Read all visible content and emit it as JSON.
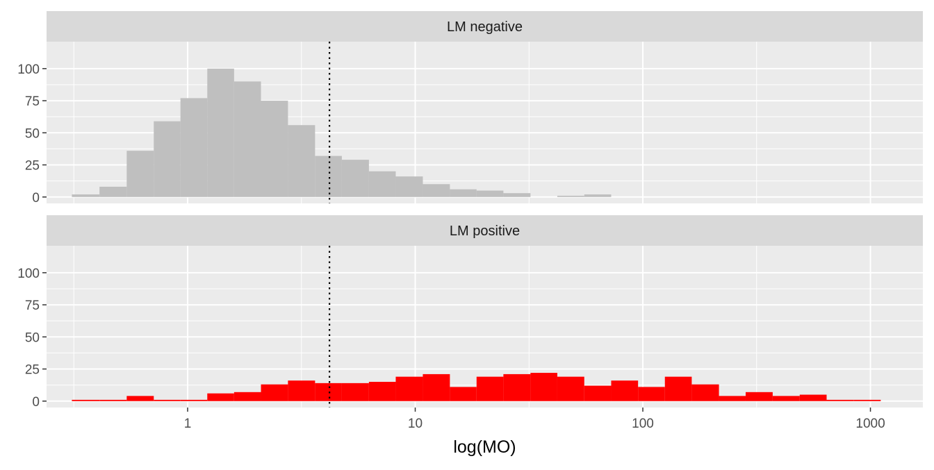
{
  "chart_data": {
    "type": "bar",
    "subtype": "faceted-histogram",
    "xlabel": "log(MO)",
    "ylabel": "",
    "x_scale": "log10",
    "xlim": [
      0.24,
      1700
    ],
    "ylim": [
      -5,
      121
    ],
    "x_ticks": [
      {
        "value": 1,
        "label": "1"
      },
      {
        "value": 10,
        "label": "10"
      },
      {
        "value": 100,
        "label": "100"
      },
      {
        "value": 1000,
        "label": "1000"
      }
    ],
    "y_ticks": [
      {
        "value": 0,
        "label": "0"
      },
      {
        "value": 25,
        "label": "25"
      },
      {
        "value": 50,
        "label": "50"
      },
      {
        "value": 75,
        "label": "75"
      },
      {
        "value": 100,
        "label": "100"
      }
    ],
    "reference_line": {
      "x": 4.2,
      "style": "dotted"
    },
    "grid": true,
    "bin_edges": [
      0.31,
      0.41,
      0.54,
      0.71,
      0.93,
      1.22,
      1.6,
      2.1,
      2.76,
      3.63,
      4.76,
      6.26,
      8.21,
      10.8,
      14.2,
      18.6,
      24.4,
      32.1,
      42.1,
      55.3,
      72.6,
      95.3,
      125,
      164,
      216,
      283,
      372,
      489,
      642,
      843,
      1110
    ],
    "facets": [
      {
        "title": "LM negative",
        "color": "#bfbfbf",
        "values": [
          2,
          8,
          36,
          59,
          77,
          100,
          90,
          75,
          56,
          32,
          29,
          20,
          16,
          10,
          6,
          5,
          3,
          0,
          1,
          2,
          0,
          0,
          0,
          0,
          0,
          0,
          0,
          0,
          0,
          0
        ]
      },
      {
        "title": "LM positive",
        "color": "#ff0000",
        "values": [
          1,
          1,
          4,
          1,
          1,
          6,
          7,
          13,
          16,
          14,
          14,
          15,
          19,
          21,
          11,
          19,
          21,
          22,
          19,
          12,
          16,
          11,
          19,
          13,
          4,
          7,
          4,
          5,
          1,
          1
        ]
      }
    ]
  }
}
